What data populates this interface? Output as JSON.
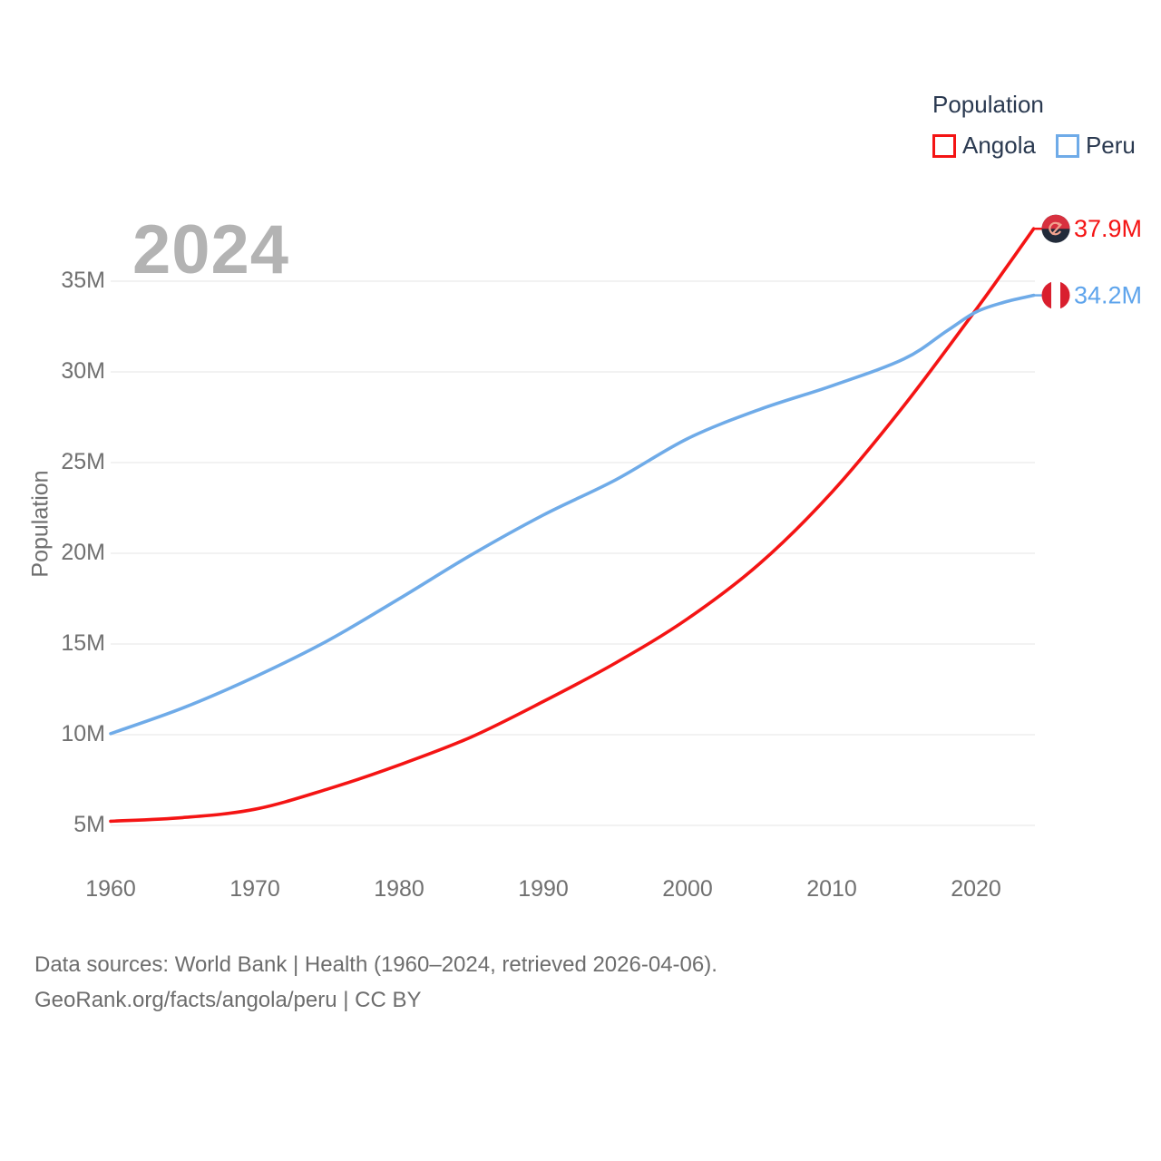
{
  "watermark": "2024",
  "legend": {
    "title": "Population",
    "items": [
      {
        "label": "Angola",
        "color": "#f41414"
      },
      {
        "label": "Peru",
        "color": "#74b0ea"
      }
    ]
  },
  "footer": {
    "line1": "Data sources: World Bank | Health (1960–2024, retrieved 2026-04-06).",
    "line2": "GeoRank.org/facts/angola/peru | CC BY"
  },
  "colors": {
    "angola_line": "#f41414",
    "peru_line": "#6fabe8",
    "legend_text": "#2a3950",
    "tick_text": "#707070",
    "gridline": "#e9e9e9",
    "watermark": "#b3b3b3",
    "footer_text": "#6d6d6d",
    "background": "#ffffff"
  },
  "icons": {
    "angola_end_marker": "angola-flag-icon",
    "peru_end_marker": "peru-flag-icon"
  },
  "chart_data": {
    "type": "line",
    "title": "2024",
    "xlabel": "",
    "ylabel": "Population",
    "x_ticks": [
      1960,
      1970,
      1980,
      1990,
      2000,
      2010,
      2020
    ],
    "x_tick_labels": [
      "1960",
      "1970",
      "1980",
      "1990",
      "2000",
      "2010",
      "2020"
    ],
    "y_ticks": [
      5,
      10,
      15,
      20,
      25,
      30,
      35
    ],
    "y_tick_labels": [
      "5M",
      "10M",
      "15M",
      "20M",
      "25M",
      "30M",
      "35M"
    ],
    "xlim": [
      1960,
      2024
    ],
    "ylim_millions": [
      3.5,
      39.5
    ],
    "grid": "horizontal",
    "legend_position": "top-right",
    "series": [
      {
        "name": "Angola",
        "color": "#f41414",
        "end_label": "37.9M",
        "end_value_millions": 37.9,
        "flag": "angola",
        "points": [
          [
            1960,
            5.23
          ],
          [
            1965,
            5.43
          ],
          [
            1970,
            5.89
          ],
          [
            1975,
            6.99
          ],
          [
            1980,
            8.33
          ],
          [
            1985,
            9.87
          ],
          [
            1990,
            11.83
          ],
          [
            1995,
            13.95
          ],
          [
            2000,
            16.39
          ],
          [
            2005,
            19.43
          ],
          [
            2010,
            23.36
          ],
          [
            2015,
            28.13
          ],
          [
            2020,
            33.43
          ],
          [
            2022,
            35.64
          ],
          [
            2024,
            37.89
          ]
        ]
      },
      {
        "name": "Peru",
        "color": "#6fabe8",
        "end_label": "34.2M",
        "end_value_millions": 34.2,
        "flag": "peru",
        "points": [
          [
            1960,
            10.06
          ],
          [
            1965,
            11.47
          ],
          [
            1970,
            13.19
          ],
          [
            1975,
            15.16
          ],
          [
            1980,
            17.49
          ],
          [
            1985,
            19.91
          ],
          [
            1990,
            22.11
          ],
          [
            1995,
            24.04
          ],
          [
            2000,
            26.32
          ],
          [
            2005,
            27.93
          ],
          [
            2010,
            29.23
          ],
          [
            2015,
            30.71
          ],
          [
            2018,
            32.27
          ],
          [
            2020,
            33.3
          ],
          [
            2022,
            33.85
          ],
          [
            2024,
            34.22
          ]
        ]
      }
    ]
  }
}
